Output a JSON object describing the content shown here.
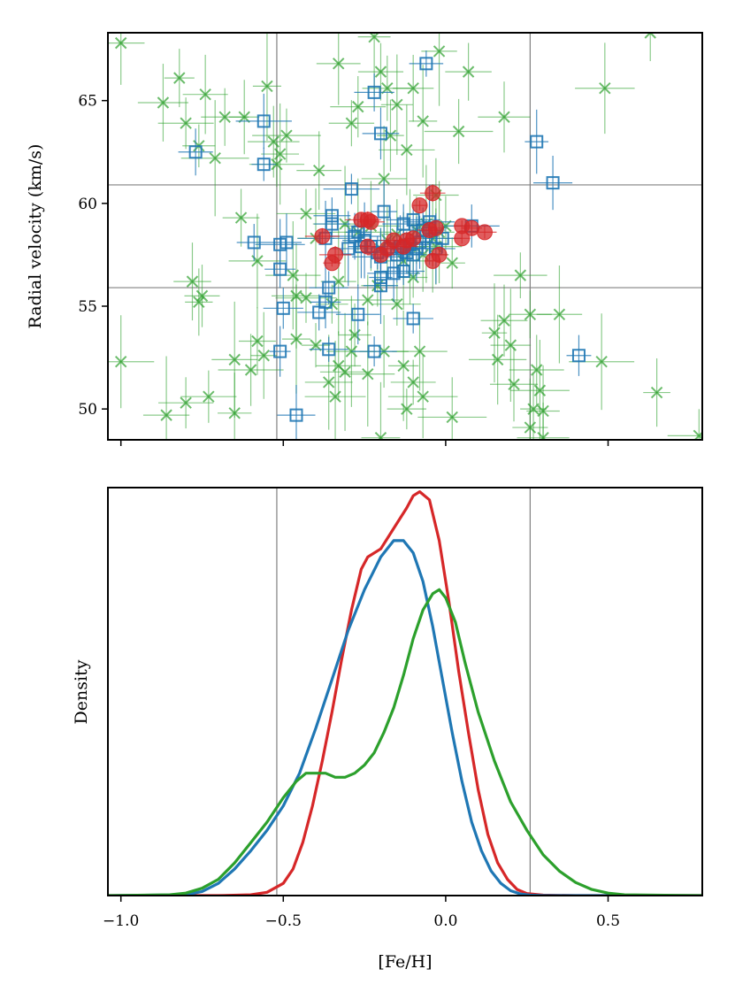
{
  "chart_data": [
    {
      "type": "scatter",
      "xlabel": "",
      "ylabel": "Radial velocity (km/s)",
      "xlim": [
        -1.04,
        0.79
      ],
      "ylim": [
        48.5,
        68.3
      ],
      "yticks": [
        50,
        55,
        60,
        65
      ],
      "ytick_labels": [
        "50",
        "55",
        "60",
        "65"
      ],
      "xticks": [
        -1.0,
        -0.5,
        0.0,
        0.5
      ],
      "xtick_labels_shown": false,
      "grid": false,
      "reference_lines": {
        "vertical": [
          -0.52,
          0.26
        ],
        "horizontal": [
          55.9,
          60.9
        ]
      },
      "series": [
        {
          "marker": "x",
          "color": "#2ca02c",
          "points": [
            [
              -1.0,
              67.8
            ],
            [
              -0.82,
              66.1
            ],
            [
              -0.74,
              65.3
            ],
            [
              -0.55,
              65.7
            ],
            [
              -0.53,
              63.0
            ],
            [
              -0.51,
              62.4
            ],
            [
              -0.52,
              61.9
            ],
            [
              -0.68,
              64.2
            ],
            [
              -0.8,
              63.9
            ],
            [
              -0.87,
              64.9
            ],
            [
              -0.76,
              62.8
            ],
            [
              -0.71,
              62.2
            ],
            [
              -0.62,
              64.2
            ],
            [
              -0.49,
              63.3
            ],
            [
              -0.33,
              66.8
            ],
            [
              -0.27,
              64.7
            ],
            [
              -0.22,
              68.1
            ],
            [
              -0.2,
              66.4
            ],
            [
              -0.18,
              65.6
            ],
            [
              -0.15,
              64.8
            ],
            [
              -0.1,
              65.6
            ],
            [
              -0.07,
              64.0
            ],
            [
              -0.02,
              67.4
            ],
            [
              0.07,
              66.4
            ],
            [
              0.18,
              64.2
            ],
            [
              0.49,
              65.6
            ],
            [
              0.63,
              68.3
            ],
            [
              -0.29,
              63.9
            ],
            [
              -0.17,
              63.3
            ],
            [
              -0.12,
              62.6
            ],
            [
              0.04,
              63.5
            ],
            [
              -0.39,
              61.6
            ],
            [
              -0.19,
              61.2
            ],
            [
              -0.03,
              60.4
            ],
            [
              -0.63,
              59.3
            ],
            [
              -0.43,
              59.5
            ],
            [
              -0.4,
              58.3
            ],
            [
              -0.31,
              59.0
            ],
            [
              -0.27,
              58.6
            ],
            [
              -0.23,
              58.9
            ],
            [
              -0.2,
              57.8
            ],
            [
              -0.18,
              58.2
            ],
            [
              -0.15,
              58.5
            ],
            [
              -0.13,
              57.2
            ],
            [
              -0.11,
              57.9
            ],
            [
              -0.09,
              58.7
            ],
            [
              -0.07,
              57.5
            ],
            [
              -0.06,
              59.0
            ],
            [
              -0.04,
              58.3
            ],
            [
              -0.03,
              57.9
            ],
            [
              -0.02,
              58.6
            ],
            [
              0.0,
              58.9
            ],
            [
              0.02,
              57.1
            ],
            [
              -0.58,
              57.2
            ],
            [
              -0.47,
              56.5
            ],
            [
              -0.33,
              56.2
            ],
            [
              -0.21,
              56.0
            ],
            [
              -0.1,
              56.4
            ],
            [
              -0.46,
              55.5
            ],
            [
              -0.24,
              55.3
            ],
            [
              -0.15,
              55.1
            ],
            [
              -0.78,
              56.2
            ],
            [
              -0.76,
              55.2
            ],
            [
              -0.75,
              55.5
            ],
            [
              -0.43,
              55.4
            ],
            [
              -0.35,
              55.1
            ],
            [
              0.23,
              56.5
            ],
            [
              0.26,
              54.6
            ],
            [
              0.18,
              54.3
            ],
            [
              0.15,
              53.7
            ],
            [
              0.35,
              54.6
            ],
            [
              0.2,
              53.1
            ],
            [
              0.16,
              52.4
            ],
            [
              -0.58,
              53.3
            ],
            [
              -0.46,
              53.4
            ],
            [
              -0.4,
              53.1
            ],
            [
              -0.28,
              53.6
            ],
            [
              -0.56,
              52.6
            ],
            [
              -0.33,
              52.1
            ],
            [
              -0.29,
              52.8
            ],
            [
              -0.19,
              52.8
            ],
            [
              -0.13,
              52.1
            ],
            [
              -0.08,
              52.8
            ],
            [
              -1.0,
              52.3
            ],
            [
              -0.65,
              52.4
            ],
            [
              -0.6,
              51.9
            ],
            [
              -0.36,
              51.3
            ],
            [
              -0.34,
              50.6
            ],
            [
              -0.31,
              51.8
            ],
            [
              -0.24,
              51.7
            ],
            [
              -0.1,
              51.3
            ],
            [
              -0.07,
              50.6
            ],
            [
              0.28,
              51.9
            ],
            [
              0.29,
              50.9
            ],
            [
              0.21,
              51.2
            ],
            [
              0.48,
              52.3
            ],
            [
              0.65,
              50.8
            ],
            [
              -0.86,
              49.7
            ],
            [
              -0.8,
              50.3
            ],
            [
              -0.73,
              50.6
            ],
            [
              -0.65,
              49.8
            ],
            [
              -0.12,
              50.0
            ],
            [
              0.02,
              49.6
            ],
            [
              0.27,
              50.0
            ],
            [
              0.3,
              49.9
            ],
            [
              0.26,
              49.1
            ],
            [
              -0.2,
              48.6
            ],
            [
              0.3,
              48.6
            ],
            [
              0.78,
              48.7
            ]
          ]
        },
        {
          "marker": "s",
          "color": "#1f77b4",
          "points": [
            [
              -0.77,
              62.5
            ],
            [
              -0.56,
              64.0
            ],
            [
              -0.56,
              61.9
            ],
            [
              -0.22,
              65.4
            ],
            [
              -0.2,
              63.4
            ],
            [
              -0.06,
              66.8
            ],
            [
              0.28,
              63.0
            ],
            [
              0.33,
              61.0
            ],
            [
              -0.29,
              60.7
            ],
            [
              -0.35,
              59.4
            ],
            [
              -0.35,
              59.0
            ],
            [
              -0.19,
              59.6
            ],
            [
              -0.1,
              59.2
            ],
            [
              -0.13,
              59.0
            ],
            [
              -0.59,
              58.1
            ],
            [
              -0.51,
              58.0
            ],
            [
              -0.49,
              58.1
            ],
            [
              -0.37,
              58.3
            ],
            [
              -0.3,
              57.8
            ],
            [
              -0.28,
              58.4
            ],
            [
              -0.27,
              58.6
            ],
            [
              -0.26,
              57.9
            ],
            [
              -0.25,
              58.2
            ],
            [
              -0.23,
              57.9
            ],
            [
              -0.21,
              57.6
            ],
            [
              -0.2,
              57.4
            ],
            [
              -0.17,
              57.8
            ],
            [
              -0.15,
              57.5
            ],
            [
              -0.14,
              57.9
            ],
            [
              -0.13,
              57.8
            ],
            [
              -0.12,
              57.6
            ],
            [
              -0.11,
              58.0
            ],
            [
              -0.1,
              57.5
            ],
            [
              -0.09,
              57.8
            ],
            [
              -0.08,
              58.1
            ],
            [
              -0.07,
              58.7
            ],
            [
              -0.06,
              58.4
            ],
            [
              -0.05,
              58.8
            ],
            [
              -0.05,
              59.1
            ],
            [
              -0.03,
              57.8
            ],
            [
              -0.01,
              58.3
            ],
            [
              0.08,
              58.9
            ],
            [
              -0.51,
              56.8
            ],
            [
              -0.2,
              56.4
            ],
            [
              -0.2,
              56.0
            ],
            [
              -0.16,
              56.6
            ],
            [
              -0.13,
              56.7
            ],
            [
              -0.36,
              55.9
            ],
            [
              -0.5,
              54.9
            ],
            [
              -0.37,
              55.2
            ],
            [
              -0.39,
              54.7
            ],
            [
              -0.27,
              54.6
            ],
            [
              -0.1,
              54.4
            ],
            [
              -0.51,
              52.8
            ],
            [
              -0.36,
              52.9
            ],
            [
              -0.22,
              52.8
            ],
            [
              0.41,
              52.6
            ],
            [
              -0.46,
              49.7
            ]
          ]
        },
        {
          "marker": "o",
          "color": "#d62728",
          "points": [
            [
              -0.38,
              58.4
            ],
            [
              -0.35,
              57.1
            ],
            [
              -0.34,
              57.5
            ],
            [
              -0.26,
              59.2
            ],
            [
              -0.24,
              59.2
            ],
            [
              -0.24,
              57.9
            ],
            [
              -0.23,
              59.1
            ],
            [
              -0.2,
              57.5
            ],
            [
              -0.18,
              57.8
            ],
            [
              -0.16,
              58.2
            ],
            [
              -0.13,
              57.9
            ],
            [
              -0.12,
              58.2
            ],
            [
              -0.1,
              58.3
            ],
            [
              -0.08,
              59.9
            ],
            [
              -0.05,
              58.7
            ],
            [
              -0.04,
              60.5
            ],
            [
              -0.04,
              57.2
            ],
            [
              -0.03,
              58.8
            ],
            [
              -0.02,
              57.5
            ],
            [
              0.05,
              58.3
            ],
            [
              0.05,
              58.9
            ],
            [
              0.08,
              58.8
            ],
            [
              0.12,
              58.6
            ]
          ]
        }
      ]
    },
    {
      "type": "line",
      "xlabel": "[Fe/H]",
      "ylabel": "Density",
      "xlim": [
        -1.04,
        0.79
      ],
      "ylim": [
        0,
        1.0
      ],
      "xticks": [
        -1.0,
        -0.5,
        0.0,
        0.5
      ],
      "xtick_labels": [
        "−1.0",
        "−0.5",
        "0.0",
        "0.5"
      ],
      "yticks_shown": false,
      "grid": false,
      "reference_lines": {
        "vertical": [
          -0.52,
          0.26
        ]
      },
      "series": [
        {
          "color": "#d62728",
          "x": [
            -1.04,
            -0.7,
            -0.6,
            -0.55,
            -0.5,
            -0.47,
            -0.44,
            -0.41,
            -0.38,
            -0.35,
            -0.32,
            -0.29,
            -0.26,
            -0.24,
            -0.2,
            -0.16,
            -0.12,
            -0.1,
            -0.08,
            -0.05,
            -0.02,
            0.01,
            0.04,
            0.07,
            0.1,
            0.13,
            0.16,
            0.19,
            0.22,
            0.25,
            0.3,
            0.4,
            0.79
          ],
          "y": [
            0.0,
            0.0,
            0.002,
            0.008,
            0.03,
            0.065,
            0.13,
            0.22,
            0.33,
            0.45,
            0.58,
            0.7,
            0.8,
            0.83,
            0.85,
            0.9,
            0.95,
            0.98,
            0.99,
            0.97,
            0.87,
            0.72,
            0.55,
            0.4,
            0.26,
            0.15,
            0.08,
            0.04,
            0.015,
            0.005,
            0.001,
            0.0,
            0.0
          ]
        },
        {
          "color": "#1f77b4",
          "x": [
            -1.04,
            -0.8,
            -0.75,
            -0.7,
            -0.65,
            -0.6,
            -0.55,
            -0.5,
            -0.45,
            -0.4,
            -0.35,
            -0.3,
            -0.25,
            -0.2,
            -0.16,
            -0.13,
            -0.1,
            -0.07,
            -0.04,
            -0.01,
            0.02,
            0.05,
            0.08,
            0.11,
            0.14,
            0.17,
            0.2,
            0.23,
            0.26,
            0.3,
            0.4,
            0.79
          ],
          "y": [
            0.0,
            0.002,
            0.01,
            0.03,
            0.065,
            0.11,
            0.16,
            0.22,
            0.3,
            0.41,
            0.53,
            0.65,
            0.75,
            0.83,
            0.87,
            0.87,
            0.84,
            0.77,
            0.66,
            0.53,
            0.4,
            0.28,
            0.18,
            0.11,
            0.06,
            0.03,
            0.012,
            0.004,
            0.001,
            0.0,
            0.0,
            0.0
          ]
        },
        {
          "color": "#2ca02c",
          "x": [
            -1.04,
            -0.85,
            -0.8,
            -0.75,
            -0.7,
            -0.65,
            -0.6,
            -0.55,
            -0.5,
            -0.46,
            -0.43,
            -0.4,
            -0.37,
            -0.34,
            -0.31,
            -0.28,
            -0.25,
            -0.22,
            -0.19,
            -0.16,
            -0.13,
            -0.1,
            -0.07,
            -0.04,
            -0.02,
            0.0,
            0.03,
            0.06,
            0.1,
            0.15,
            0.2,
            0.25,
            0.3,
            0.35,
            0.4,
            0.45,
            0.5,
            0.55,
            0.79
          ],
          "y": [
            0.0,
            0.002,
            0.006,
            0.018,
            0.04,
            0.08,
            0.13,
            0.18,
            0.24,
            0.28,
            0.3,
            0.3,
            0.3,
            0.29,
            0.29,
            0.3,
            0.32,
            0.35,
            0.4,
            0.46,
            0.54,
            0.63,
            0.7,
            0.74,
            0.75,
            0.73,
            0.67,
            0.57,
            0.45,
            0.33,
            0.23,
            0.16,
            0.1,
            0.06,
            0.032,
            0.015,
            0.006,
            0.002,
            0.0
          ]
        }
      ]
    }
  ]
}
